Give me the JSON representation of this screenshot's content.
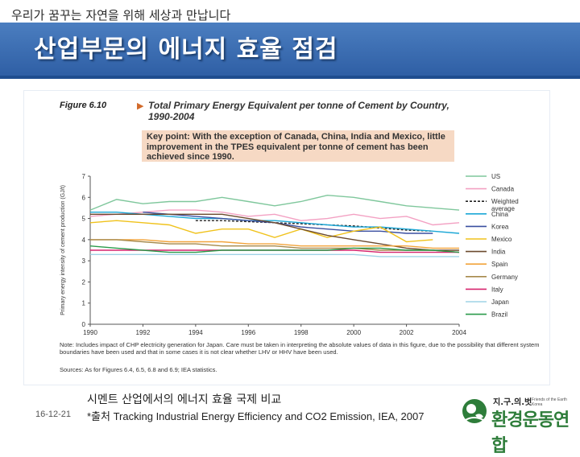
{
  "header": {
    "slogan": "우리가 꿈꾸는 자연을 위해 세상과 만납니다",
    "title": "산업부문의 에너지 효율 점검"
  },
  "figure": {
    "label": "Figure 6.10",
    "title": "Total Primary Energy Equivalent per tonne of Cement by Country, 1990-2004",
    "key_point": "Key point: With the exception of Canada, China, India and Mexico, little improvement in the TPES equivalent per tonne of cement has been achieved since 1990.",
    "note": "Note: Includes impact of CHP electricity generation for Japan. Care must be taken in interpreting the absolute values of data in this figure, due to the possibility that different system boundaries have been used and that in some cases it is not clear whether LHV or HHV have been used.",
    "sources": "Sources: As for Figures 6.4, 6.5, 6.8 and 6.9; IEA statistics."
  },
  "chart_data": {
    "type": "line",
    "title": "Total Primary Energy Equivalent per tonne of Cement by Country, 1990-2004",
    "xlabel": "",
    "ylabel": "Primary energy intensity of cement production (GJ/t)",
    "xlim": [
      1990,
      2004
    ],
    "ylim": [
      0,
      7
    ],
    "xticks": [
      "1990",
      "1992",
      "1994",
      "1996",
      "1998",
      "2000",
      "2002",
      "2004"
    ],
    "yticks": [
      "0",
      "1",
      "2",
      "3",
      "4",
      "5",
      "6",
      "7"
    ],
    "grid": false,
    "legend_position": "right",
    "series": [
      {
        "name": "US",
        "color": "#7fc79c",
        "dash": "",
        "x": [
          1990,
          1991,
          1992,
          1993,
          1994,
          1995,
          1996,
          1997,
          1998,
          1999,
          2000,
          2001,
          2002,
          2003,
          2004
        ],
        "y": [
          5.4,
          5.9,
          5.7,
          5.8,
          5.8,
          6.0,
          5.8,
          5.6,
          5.8,
          6.1,
          6.0,
          5.8,
          5.6,
          5.5,
          5.4
        ]
      },
      {
        "name": "Canada",
        "color": "#f3a1c3",
        "dash": "",
        "x": [
          1990,
          1991,
          1992,
          1993,
          1994,
          1995,
          1996,
          1997,
          1998,
          1999,
          2000,
          2001,
          2002,
          2003,
          2004
        ],
        "y": [
          5.1,
          5.2,
          5.3,
          5.4,
          5.4,
          5.3,
          5.1,
          5.2,
          4.9,
          5.0,
          5.2,
          5.0,
          5.1,
          4.7,
          4.8
        ]
      },
      {
        "name": "Weighted average",
        "color": "#222222",
        "dash": "3,2",
        "x": [
          1994,
          1995,
          1996,
          1997,
          1998,
          1999,
          2000,
          2001,
          2002,
          2003
        ],
        "y": [
          4.9,
          4.9,
          4.85,
          4.8,
          4.75,
          4.7,
          4.65,
          4.55,
          4.45,
          4.4
        ]
      },
      {
        "name": "China",
        "color": "#1ba7d6",
        "dash": "",
        "x": [
          1990,
          1991,
          1992,
          1993,
          1994,
          1995,
          1996,
          1997,
          1998,
          1999,
          2000,
          2001,
          2002,
          2003,
          2004
        ],
        "y": [
          5.3,
          5.3,
          5.2,
          5.1,
          5.0,
          5.0,
          4.9,
          4.9,
          4.8,
          4.7,
          4.6,
          4.6,
          4.5,
          4.4,
          4.3
        ]
      },
      {
        "name": "Korea",
        "color": "#3a4fa0",
        "dash": "",
        "x": [
          1992,
          1993,
          1994,
          1995,
          1996,
          1997,
          1998,
          1999,
          2000,
          2001,
          2002,
          2003
        ],
        "y": [
          5.3,
          5.2,
          5.1,
          5.0,
          4.9,
          4.8,
          4.6,
          4.5,
          4.4,
          4.4,
          4.3,
          4.3
        ]
      },
      {
        "name": "Mexico",
        "color": "#f0c21b",
        "dash": "",
        "x": [
          1990,
          1991,
          1992,
          1993,
          1994,
          1995,
          1996,
          1997,
          1998,
          1999,
          2000,
          2001,
          2002,
          2003
        ],
        "y": [
          4.8,
          4.9,
          4.8,
          4.7,
          4.3,
          4.5,
          4.5,
          4.1,
          4.5,
          4.1,
          4.4,
          4.6,
          3.9,
          4.0
        ]
      },
      {
        "name": "India",
        "color": "#6b4a2e",
        "dash": "",
        "x": [
          1990,
          1991,
          1992,
          1993,
          1994,
          1995,
          1996,
          1997,
          1998,
          1999,
          2000,
          2001,
          2002,
          2003,
          2004
        ],
        "y": [
          5.2,
          5.2,
          5.2,
          5.2,
          5.2,
          5.2,
          5.0,
          4.8,
          4.5,
          4.2,
          4.0,
          3.8,
          3.6,
          3.5,
          3.5
        ]
      },
      {
        "name": "Spain",
        "color": "#f2a33a",
        "dash": "",
        "x": [
          1990,
          1991,
          1992,
          1993,
          1994,
          1995,
          1996,
          1997,
          1998,
          1999,
          2000,
          2001,
          2002,
          2003,
          2004
        ],
        "y": [
          4.0,
          4.0,
          4.0,
          3.9,
          3.9,
          3.9,
          3.8,
          3.8,
          3.7,
          3.7,
          3.7,
          3.7,
          3.7,
          3.6,
          3.6
        ]
      },
      {
        "name": "Germany",
        "color": "#a6894b",
        "dash": "",
        "x": [
          1990,
          1991,
          1992,
          1993,
          1994,
          1995,
          1996,
          1997,
          1998,
          1999,
          2000,
          2001,
          2002,
          2003,
          2004
        ],
        "y": [
          4.0,
          4.0,
          3.9,
          3.8,
          3.8,
          3.7,
          3.7,
          3.7,
          3.6,
          3.6,
          3.6,
          3.5,
          3.5,
          3.5,
          3.4
        ]
      },
      {
        "name": "Italy",
        "color": "#d6246e",
        "dash": "",
        "x": [
          1990,
          1991,
          1992,
          1993,
          1994,
          1995,
          1996,
          1997,
          1998,
          1999,
          2000,
          2001,
          2002,
          2003,
          2004
        ],
        "y": [
          3.5,
          3.5,
          3.5,
          3.5,
          3.5,
          3.5,
          3.5,
          3.5,
          3.5,
          3.5,
          3.5,
          3.4,
          3.4,
          3.4,
          3.4
        ]
      },
      {
        "name": "Japan",
        "color": "#9fd3e6",
        "dash": "",
        "x": [
          1990,
          1991,
          1992,
          1993,
          1994,
          1995,
          1996,
          1997,
          1998,
          1999,
          2000,
          2001,
          2002,
          2003,
          2004
        ],
        "y": [
          3.3,
          3.3,
          3.3,
          3.3,
          3.3,
          3.3,
          3.3,
          3.3,
          3.3,
          3.3,
          3.3,
          3.2,
          3.2,
          3.2,
          3.2
        ]
      },
      {
        "name": "Brazil",
        "color": "#2a9a4a",
        "dash": "",
        "x": [
          1990,
          1991,
          1992,
          1993,
          1994,
          1995,
          1996,
          1997,
          1998,
          1999,
          2000,
          2001,
          2002,
          2003,
          2004
        ],
        "y": [
          3.7,
          3.6,
          3.5,
          3.4,
          3.4,
          3.5,
          3.5,
          3.5,
          3.5,
          3.5,
          3.6,
          3.6,
          3.5,
          3.5,
          3.4
        ]
      }
    ]
  },
  "footer": {
    "date": "16-12-21",
    "caption": "시멘트 산업에서의 에너지 효율 국제 비교",
    "source": "*출처 Tracking Industrial Energy Efficiency and CO2 Emission, IEA, 2007"
  },
  "logo": {
    "top_text": "지.구.의.벗",
    "sub_text": "Friends of the Earth Korea",
    "name": "환경운동연합"
  },
  "colors": {
    "title_band": "#2f5fa5",
    "key_point_bg": "#f6d9c4",
    "logo_green": "#2e7d3a"
  }
}
